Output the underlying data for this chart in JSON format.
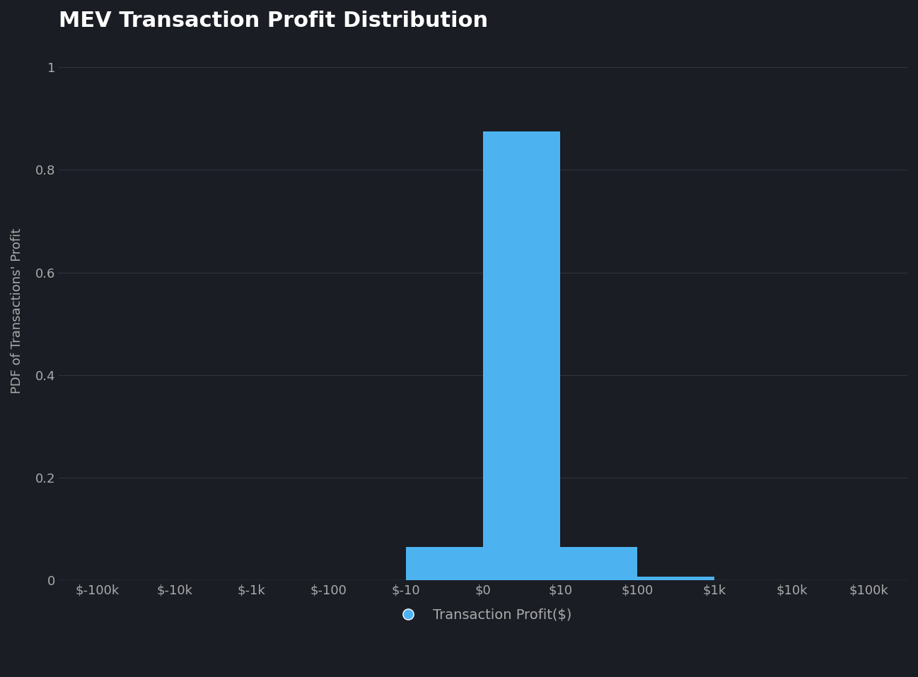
{
  "title": "MEV Transaction Profit Distribution",
  "ylabel": "PDF of Transactions' Profit",
  "background_color": "#1a1d24",
  "bar_color": "#4db3f0",
  "axis_color": "#4a5060",
  "text_color": "#aaaaaa",
  "grid_color": "#2e3340",
  "tick_labels": [
    "$-100k",
    "$-10k",
    "$-1k",
    "$-100",
    "$-10",
    "$0",
    "$10",
    "$100",
    "$1k",
    "$10k",
    "$100k"
  ],
  "bar_heights": [
    0,
    0,
    0,
    0,
    0.065,
    0.875,
    0.065,
    0.008,
    0,
    0
  ],
  "ylim": [
    0,
    1.05
  ],
  "yticks": [
    0,
    0.2,
    0.4,
    0.6,
    0.8,
    1
  ],
  "title_fontsize": 22,
  "label_fontsize": 13,
  "tick_fontsize": 13,
  "legend_label": "Transaction Profit($)"
}
